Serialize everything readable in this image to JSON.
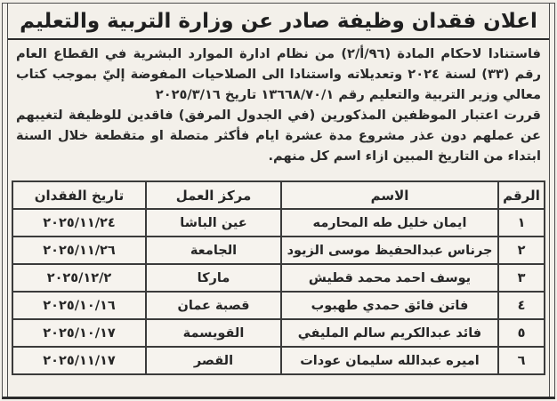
{
  "colors": {
    "background": "#f3f0ea",
    "text": "#2a2a2a",
    "border": "#3b3b3b"
  },
  "title": "اعلان فقدان وظيفة صادر عن وزارة التربية والتعليم",
  "body": {
    "paragraph1": "فاستنادا لاحكام المادة (٩٦/أ/٢) من نظام ادارة الموارد البشرية في القطاع العام رقم (٣٣) لسنة ٢٠٢٤ وتعديلاته واستنادا الى الصلاحيات المفوضة إليّ بموجب كتاب معالي وزير التربية والتعليم رقم ١٣٦٦٨/٧٠/١ تاريخ ٢٠٢٥/٣/١٦",
    "paragraph2": "قررت اعتبار الموظفين المذكورين (في الجدول المرفق) فاقدين للوظيفة لتغيبهم عن عملهم دون عذر مشروع مدة عشرة ايام فأكثر متصلة او متقطعة خلال السنة ابتداء من التاريخ المبين ازاء اسم كل منهم."
  },
  "table": {
    "headers": [
      "الرقم",
      "الاسم",
      "مركز العمل",
      "تاريخ الفقدان"
    ],
    "rows": [
      {
        "num": "١",
        "name": "ايمان خليل طه المحارمه",
        "center": "عين الباشا",
        "date": "٢٠٢٥/١١/٢٤"
      },
      {
        "num": "٢",
        "name": "جرناس عبدالحفيظ موسى الزيود",
        "center": "الجامعة",
        "date": "٢٠٢٥/١١/٢٦"
      },
      {
        "num": "٣",
        "name": "يوسف احمد محمد قطيش",
        "center": "ماركا",
        "date": "٢٠٢٥/١٢/٢"
      },
      {
        "num": "٤",
        "name": "فاتن فائق حمدي طهبوب",
        "center": "قصبة عمان",
        "date": "٢٠٢٥/١٠/١٦"
      },
      {
        "num": "٥",
        "name": "فائد عبدالكريم سالم المليفي",
        "center": "القويسمة",
        "date": "٢٠٢٥/١٠/١٧"
      },
      {
        "num": "٦",
        "name": "اميره عبدالله سليمان عودات",
        "center": "القصر",
        "date": "٢٠٢٥/١١/١٧"
      }
    ]
  }
}
